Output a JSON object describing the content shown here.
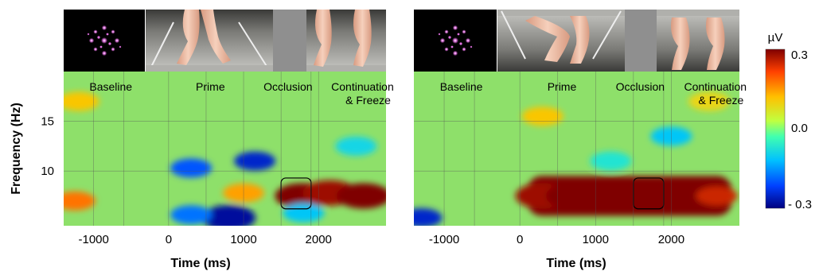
{
  "panels": [
    {
      "stimulus_frames": [
        "fixation-dots-icon",
        "upright-legs-walking-photo",
        "gray-occluder-block",
        "upright-legs-continuation-photo"
      ],
      "phases": [
        "Baseline",
        "Prime",
        "Occlusion",
        "Continuation\n& Freeze"
      ],
      "xlabel": "Time (ms)",
      "ylabel": "Frequency (Hz)",
      "x_ticks": [
        "-1000",
        "0",
        "1000",
        "2000"
      ],
      "y_ticks": [
        "15",
        "10"
      ]
    },
    {
      "stimulus_frames": [
        "fixation-dots-icon",
        "inverted-legs-walking-photo",
        "gray-occluder-block",
        "inverted-legs-continuation-photo"
      ],
      "phases": [
        "Baseline",
        "Prime",
        "Occlusion",
        "Continuation\n& Freeze"
      ],
      "xlabel": "Time (ms)",
      "ylabel": "",
      "x_ticks": [
        "-1000",
        "0",
        "1000",
        "2000"
      ],
      "y_ticks": []
    }
  ],
  "colorbar": {
    "unit": "µV",
    "labels": [
      "0.3",
      "0.0",
      "- 0.3"
    ],
    "colormap": [
      "#00007f",
      "#0040ff",
      "#00c0ff",
      "#40ffb0",
      "#c0ff40",
      "#ffc000",
      "#ff4000",
      "#7f0000"
    ]
  },
  "chart_data": [
    {
      "type": "heatmap",
      "title": "",
      "xlabel": "Time (ms)",
      "ylabel": "Frequency (Hz)",
      "xlim": [
        -1400,
        2900
      ],
      "ylim": [
        4.5,
        20
      ],
      "zlim": [
        -0.3,
        0.3
      ],
      "z_unit": "µV",
      "x_ticks": [
        -1000,
        0,
        1000,
        2000
      ],
      "y_ticks": [
        10,
        15
      ],
      "phases": [
        "Baseline",
        "Prime",
        "Occlusion",
        "Continuation & Freeze"
      ],
      "roi": {
        "x": [
          1500,
          1900
        ],
        "y": [
          6.2,
          9.3
        ]
      },
      "blobs": [
        {
          "x": -1250,
          "y": 7.0,
          "value": 0.18
        },
        {
          "x": 1780,
          "y": 7.5,
          "value": 0.3
        },
        {
          "x": 2150,
          "y": 7.8,
          "value": 0.28
        },
        {
          "x": 2600,
          "y": 7.5,
          "value": 0.32
        },
        {
          "x": 1000,
          "y": 7.8,
          "value": 0.15
        },
        {
          "x": 300,
          "y": 10.3,
          "value": -0.2
        },
        {
          "x": 1150,
          "y": 11.0,
          "value": -0.25
        },
        {
          "x": 800,
          "y": 5.3,
          "value": -0.28
        },
        {
          "x": 300,
          "y": 5.6,
          "value": -0.18
        },
        {
          "x": 1800,
          "y": 5.8,
          "value": -0.12
        },
        {
          "x": 2500,
          "y": 12.5,
          "value": -0.1
        },
        {
          "x": -1200,
          "y": 17.0,
          "value": 0.12
        }
      ]
    },
    {
      "type": "heatmap",
      "title": "",
      "xlabel": "Time (ms)",
      "ylabel": "",
      "xlim": [
        -1400,
        2900
      ],
      "ylim": [
        4.5,
        20
      ],
      "zlim": [
        -0.3,
        0.3
      ],
      "z_unit": "µV",
      "x_ticks": [
        -1000,
        0,
        1000,
        2000
      ],
      "y_ticks": [
        10,
        15
      ],
      "phases": [
        "Baseline",
        "Prime",
        "Occlusion",
        "Continuation & Freeze"
      ],
      "roi": {
        "x": [
          1500,
          1900
        ],
        "y": [
          6.2,
          9.3
        ]
      },
      "blobs": [
        {
          "x": 300,
          "y": 7.5,
          "value": 0.28
        },
        {
          "x": 700,
          "y": 7.5,
          "value": 0.32
        },
        {
          "x": 1200,
          "y": 7.2,
          "value": 0.34
        },
        {
          "x": 1600,
          "y": 7.4,
          "value": 0.36
        },
        {
          "x": 2000,
          "y": 7.2,
          "value": 0.36
        },
        {
          "x": 2600,
          "y": 7.5,
          "value": 0.25
        },
        {
          "x": 2000,
          "y": 13.5,
          "value": -0.12
        },
        {
          "x": 1200,
          "y": 11.0,
          "value": -0.08
        },
        {
          "x": -1300,
          "y": 5.3,
          "value": -0.25
        },
        {
          "x": 300,
          "y": 15.5,
          "value": 0.12
        },
        {
          "x": 2500,
          "y": 17.0,
          "value": 0.1
        }
      ]
    }
  ]
}
